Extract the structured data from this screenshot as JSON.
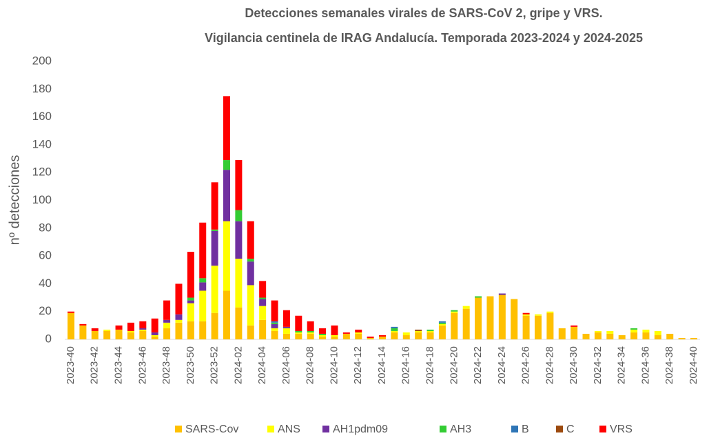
{
  "chart_data": {
    "type": "stacked-bar",
    "title": "Detecciones semanales virales de SARS-CoV 2, gripe y VRS.",
    "subtitle": "Vigilancia centinela de IRAG Andalucía. Temporada 2023-2024 y 2024-2025",
    "y_label": "nº detecciones",
    "categories": [
      "2023-40",
      null,
      "2023-42",
      null,
      "2023-44",
      null,
      "2023-46",
      null,
      "2023-48",
      null,
      "2023-50",
      null,
      "2023-52",
      null,
      "2024-02",
      null,
      "2024-04",
      null,
      "2024-06",
      null,
      "2024-08",
      null,
      "2024-10",
      null,
      "2024-12",
      null,
      "2024-14",
      null,
      "2024-16",
      null,
      "2024-18",
      null,
      "2024-20",
      null,
      "2024-22",
      null,
      "2024-24",
      null,
      "2024-26",
      null,
      "2024-28",
      null,
      "2024-30",
      null,
      "2024-32",
      null,
      "2024-34",
      null,
      "2024-36",
      null,
      "2024-38",
      null,
      "2024-40"
    ],
    "series": [
      {
        "name": "SARS-Cov",
        "color": "#FFC000",
        "values": [
          19,
          10,
          6,
          6,
          7,
          5,
          6,
          2,
          8,
          12,
          13,
          13,
          19,
          35,
          23,
          10,
          14,
          6,
          4,
          4,
          4,
          2,
          2,
          4,
          4,
          1,
          2,
          5,
          3,
          5,
          5,
          10,
          19,
          22,
          30,
          31,
          32,
          29,
          17,
          17,
          19,
          8,
          9,
          4,
          5,
          4,
          3,
          5,
          5,
          3,
          4,
          1,
          1
        ]
      },
      {
        "name": "ANS",
        "color": "#FFFF00",
        "values": [
          0,
          0,
          0,
          1,
          0,
          1,
          1,
          1,
          4,
          2,
          13,
          22,
          34,
          50,
          35,
          29,
          10,
          2,
          4,
          1,
          1,
          1,
          1,
          0,
          1,
          0,
          0,
          1,
          2,
          1,
          1,
          1,
          1,
          2,
          0,
          0,
          0,
          0,
          1,
          1,
          1,
          0,
          0,
          0,
          1,
          2,
          0,
          2,
          2,
          3,
          0,
          0,
          0
        ]
      },
      {
        "name": "AH1pdm09",
        "color": "#7030A0",
        "values": [
          0,
          0,
          0,
          0,
          0,
          0,
          1,
          2,
          2,
          4,
          2,
          6,
          25,
          37,
          27,
          17,
          5,
          3,
          1,
          0,
          0,
          0,
          0,
          0,
          0,
          0,
          0,
          0,
          0,
          0,
          0,
          0,
          0,
          0,
          0,
          0,
          1,
          0,
          0,
          0,
          0,
          0,
          0,
          0,
          0,
          0,
          0,
          0,
          0,
          0,
          0,
          0,
          0
        ]
      },
      {
        "name": "AH3",
        "color": "#33CC33",
        "values": [
          0,
          0,
          0,
          0,
          0,
          0,
          0,
          0,
          0,
          0,
          2,
          3,
          1,
          7,
          8,
          2,
          1,
          1,
          0,
          1,
          1,
          1,
          0,
          0,
          0,
          0,
          0,
          2,
          0,
          0,
          1,
          1,
          1,
          0,
          1,
          0,
          0,
          0,
          0,
          0,
          0,
          0,
          0,
          0,
          0,
          0,
          0,
          1,
          0,
          0,
          0,
          0,
          0
        ]
      },
      {
        "name": "B",
        "color": "#2E75B6",
        "values": [
          0,
          0,
          0,
          0,
          0,
          0,
          0,
          0,
          0,
          0,
          0,
          0,
          0,
          0,
          0,
          0,
          0,
          1,
          0,
          0,
          0,
          0,
          0,
          0,
          0,
          0,
          0,
          1,
          0,
          0,
          0,
          1,
          0,
          0,
          0,
          0,
          0,
          0,
          0,
          0,
          0,
          0,
          0,
          0,
          0,
          0,
          0,
          0,
          0,
          0,
          0,
          0,
          0
        ]
      },
      {
        "name": "C",
        "color": "#9C4A0E",
        "values": [
          0,
          0,
          0,
          0,
          0,
          0,
          0,
          0,
          0,
          0,
          0,
          0,
          0,
          0,
          0,
          0,
          0,
          0,
          0,
          0,
          0,
          0,
          0,
          0,
          0,
          0,
          0,
          0,
          0,
          1,
          0,
          0,
          0,
          0,
          0,
          0,
          0,
          0,
          0,
          0,
          0,
          0,
          0,
          0,
          0,
          0,
          0,
          0,
          0,
          0,
          0,
          0,
          0
        ]
      },
      {
        "name": "VRS",
        "color": "#FF0000",
        "values": [
          1,
          1,
          2,
          0,
          3,
          6,
          5,
          10,
          14,
          22,
          33,
          40,
          34,
          46,
          36,
          27,
          12,
          15,
          12,
          11,
          7,
          4,
          7,
          1,
          2,
          1,
          1,
          0,
          0,
          0,
          0,
          0,
          0,
          0,
          0,
          0,
          0,
          0,
          1,
          0,
          0,
          0,
          1,
          0,
          0,
          0,
          0,
          0,
          0,
          0,
          0,
          0,
          0
        ]
      }
    ],
    "ylim": [
      0,
      200
    ],
    "yticks": [
      0,
      20,
      40,
      60,
      80,
      100,
      120,
      140,
      160,
      180,
      200
    ],
    "grid": false
  }
}
